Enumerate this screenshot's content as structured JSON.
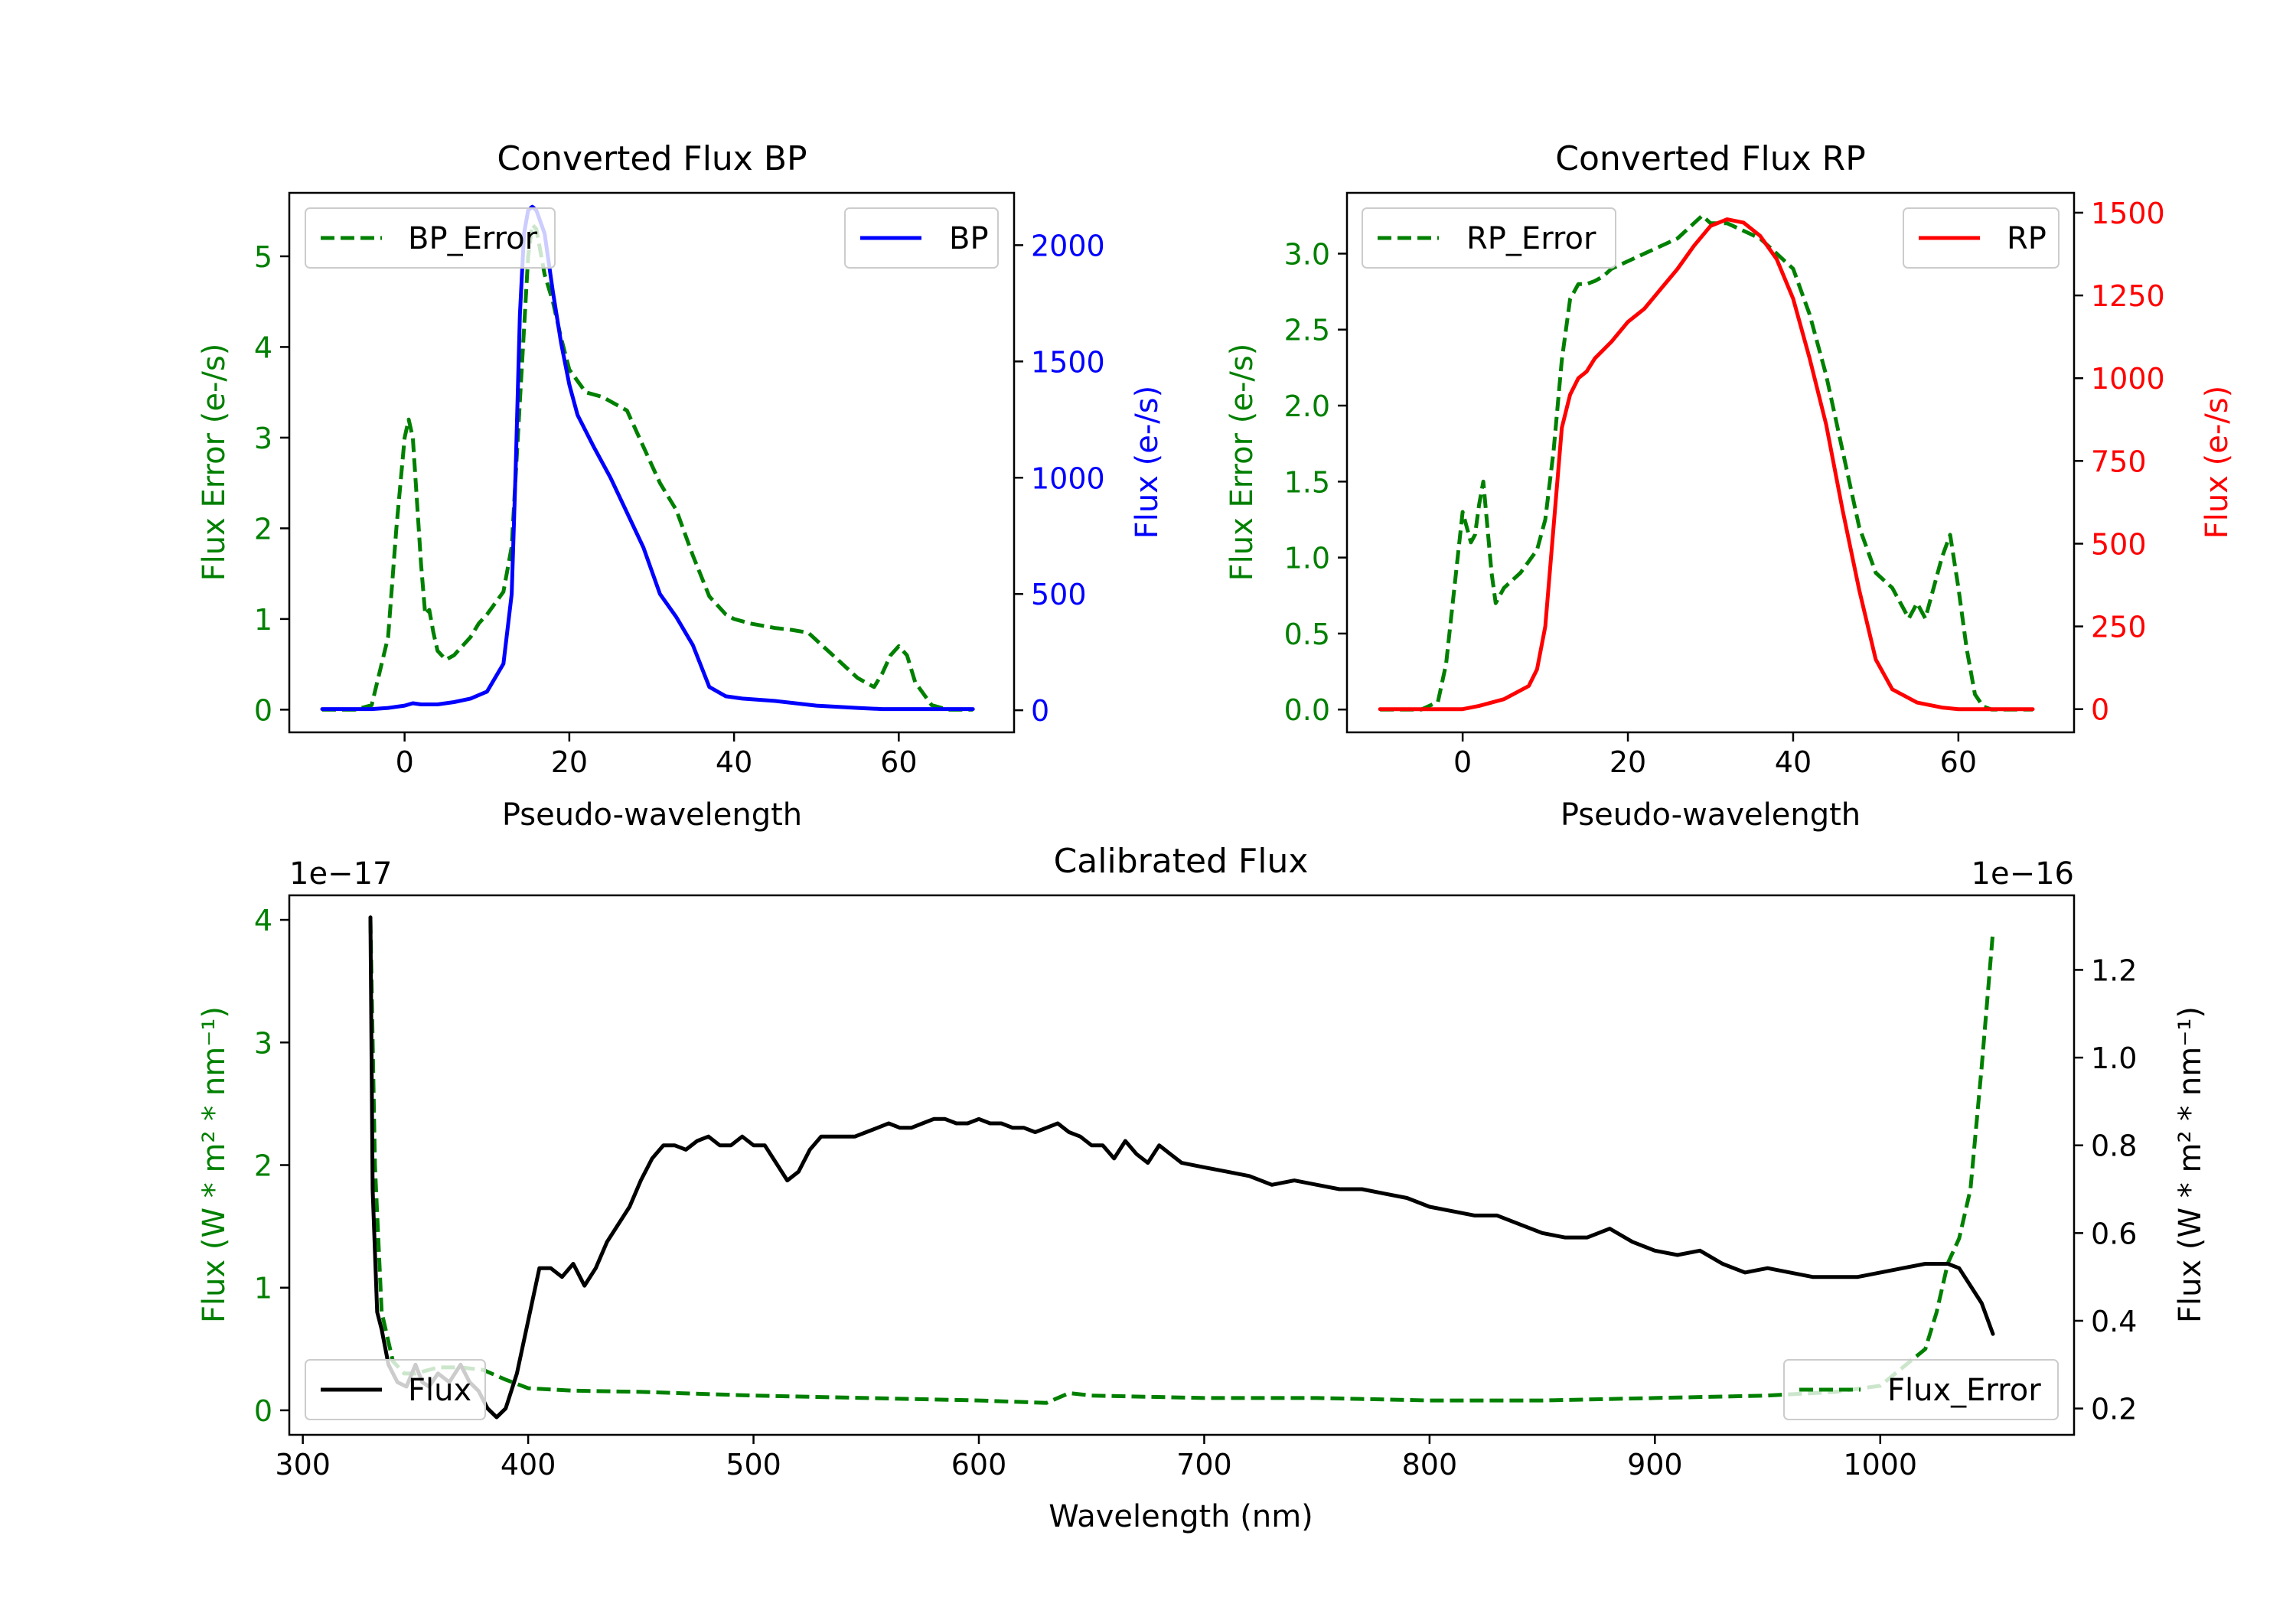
{
  "chart_data": [
    {
      "type": "line",
      "id": "bp",
      "title": "Converted Flux BP",
      "xlabel": "Pseudo-wavelength",
      "xlim": [
        -14,
        74
      ],
      "xticks": [
        0,
        20,
        40,
        60
      ],
      "left_axis": {
        "label": "Flux Error (e-/s)",
        "color": "#008000",
        "ylim": [
          -0.25,
          5.7
        ],
        "ticks": [
          0,
          1,
          2,
          3,
          4,
          5
        ],
        "tick_labels": [
          "0",
          "1",
          "2",
          "3",
          "4",
          "5"
        ]
      },
      "right_axis": {
        "label": "Flux (e-/s)",
        "color": "#0000ff",
        "ylim": [
          -95,
          2225
        ],
        "ticks": [
          0,
          500,
          1000,
          1500,
          2000
        ],
        "tick_labels": [
          "0",
          "500",
          "1000",
          "1500",
          "2000"
        ]
      },
      "series": [
        {
          "name": "BP_Error",
          "axis": "left",
          "color": "#008000",
          "style": "dashed",
          "x": [
            -10,
            -6,
            -4,
            -2,
            -1,
            0,
            0.5,
            1,
            2,
            2.5,
            3,
            3.5,
            4,
            5,
            6,
            8,
            9,
            10,
            12,
            13,
            14,
            15,
            15.5,
            16,
            17,
            18,
            19,
            20,
            22,
            24,
            27,
            29,
            31,
            33,
            35,
            37,
            39,
            40,
            42,
            45,
            47,
            49,
            52,
            55,
            57,
            58,
            59,
            60,
            61,
            62,
            64,
            66,
            69
          ],
          "y": [
            0,
            0,
            0.05,
            0.8,
            2.0,
            3.0,
            3.2,
            3.0,
            1.6,
            1.05,
            1.1,
            0.85,
            0.65,
            0.55,
            0.6,
            0.8,
            0.95,
            1.05,
            1.3,
            1.8,
            3.4,
            5.0,
            5.35,
            5.3,
            4.8,
            4.5,
            4.1,
            3.75,
            3.5,
            3.45,
            3.3,
            2.9,
            2.5,
            2.2,
            1.7,
            1.25,
            1.05,
            1.0,
            0.95,
            0.9,
            0.88,
            0.85,
            0.6,
            0.35,
            0.25,
            0.4,
            0.6,
            0.7,
            0.6,
            0.3,
            0.05,
            0,
            0
          ]
        },
        {
          "name": "BP",
          "axis": "right",
          "color": "#0000ff",
          "style": "solid",
          "x": [
            -10,
            -8,
            -6,
            -4,
            -2,
            0,
            1,
            2,
            4,
            6,
            8,
            10,
            12,
            13,
            13.5,
            14,
            14.5,
            15,
            15.5,
            16,
            17,
            18,
            19,
            20,
            21,
            23,
            25,
            27,
            29,
            31,
            33,
            35,
            37,
            39,
            41,
            45,
            50,
            55,
            58,
            60,
            62,
            65,
            69
          ],
          "y": [
            5,
            5,
            5,
            5,
            10,
            20,
            30,
            25,
            25,
            35,
            50,
            80,
            200,
            500,
            1050,
            1700,
            2050,
            2150,
            2165,
            2150,
            2050,
            1800,
            1580,
            1400,
            1270,
            1130,
            1000,
            850,
            700,
            500,
            400,
            280,
            100,
            60,
            50,
            40,
            20,
            10,
            5,
            5,
            5,
            5,
            5
          ]
        }
      ],
      "legend": [
        {
          "label": "BP_Error",
          "position": "upper-left"
        },
        {
          "label": "BP",
          "position": "upper-right"
        }
      ]
    },
    {
      "type": "line",
      "id": "rp",
      "title": "Converted Flux RP",
      "xlabel": "Pseudo-wavelength",
      "xlim": [
        -14,
        74
      ],
      "xticks": [
        0,
        20,
        40,
        60
      ],
      "left_axis": {
        "label": "Flux Error (e-/s)",
        "color": "#008000",
        "ylim": [
          -0.15,
          3.4
        ],
        "ticks": [
          0,
          0.5,
          1.0,
          1.5,
          2.0,
          2.5,
          3.0
        ],
        "tick_labels": [
          "0.0",
          "0.5",
          "1.0",
          "1.5",
          "2.0",
          "2.5",
          "3.0"
        ]
      },
      "right_axis": {
        "label": "Flux (e-/s)",
        "color": "#ff0000",
        "ylim": [
          -70,
          1560
        ],
        "ticks": [
          0,
          250,
          500,
          750,
          1000,
          1250,
          1500
        ],
        "tick_labels": [
          "0",
          "250",
          "500",
          "750",
          "1000",
          "1250",
          "1500"
        ]
      },
      "series": [
        {
          "name": "RP_Error",
          "axis": "left",
          "color": "#008000",
          "style": "dashed",
          "x": [
            -10,
            -5,
            -3,
            -2,
            -1,
            0,
            0.5,
            1,
            1.5,
            2,
            2.5,
            3,
            3.5,
            4,
            5,
            7,
            9,
            10,
            11,
            12,
            13,
            14,
            15,
            16,
            17,
            18,
            20,
            22,
            24,
            26,
            28,
            29,
            30,
            32,
            34,
            36,
            38,
            40,
            42,
            44,
            46,
            48,
            50,
            52,
            54,
            55,
            56,
            57,
            58,
            59,
            60,
            61,
            62,
            63,
            64,
            66,
            69
          ],
          "y": [
            0,
            0,
            0.05,
            0.3,
            0.8,
            1.3,
            1.2,
            1.1,
            1.15,
            1.35,
            1.5,
            1.2,
            0.9,
            0.7,
            0.8,
            0.9,
            1.05,
            1.25,
            1.7,
            2.3,
            2.7,
            2.8,
            2.8,
            2.82,
            2.85,
            2.9,
            2.95,
            3.0,
            3.05,
            3.1,
            3.2,
            3.25,
            3.2,
            3.2,
            3.15,
            3.1,
            3.0,
            2.9,
            2.6,
            2.2,
            1.7,
            1.2,
            0.9,
            0.8,
            0.6,
            0.7,
            0.6,
            0.8,
            1.0,
            1.15,
            0.8,
            0.4,
            0.1,
            0.02,
            0,
            0,
            0
          ]
        },
        {
          "name": "RP",
          "axis": "right",
          "color": "#ff0000",
          "style": "solid",
          "x": [
            -10,
            -5,
            0,
            2,
            5,
            8,
            9,
            10,
            11,
            12,
            13,
            14,
            15,
            16,
            18,
            20,
            22,
            24,
            26,
            28,
            30,
            32,
            34,
            36,
            38,
            40,
            42,
            44,
            46,
            48,
            50,
            52,
            55,
            58,
            60,
            62,
            65,
            69
          ],
          "y": [
            0,
            0,
            0,
            10,
            30,
            70,
            120,
            250,
            550,
            850,
            950,
            1000,
            1020,
            1060,
            1110,
            1170,
            1210,
            1270,
            1330,
            1400,
            1460,
            1480,
            1470,
            1430,
            1360,
            1240,
            1060,
            860,
            600,
            360,
            150,
            60,
            20,
            5,
            0,
            0,
            0,
            0
          ]
        }
      ],
      "legend": [
        {
          "label": "RP_Error",
          "position": "upper-left"
        },
        {
          "label": "RP",
          "position": "upper-right"
        }
      ]
    },
    {
      "type": "line",
      "id": "calibrated",
      "title": "Calibrated Flux",
      "xlabel": "Wavelength (nm)",
      "xlim": [
        294,
        1086
      ],
      "xticks": [
        300,
        400,
        500,
        600,
        700,
        800,
        900,
        1000
      ],
      "left_axis": {
        "label": "Flux (W * m² * nm⁻¹)",
        "color": "#008000",
        "offset_text": "1e−17",
        "ylim": [
          -0.2,
          4.2
        ],
        "ticks": [
          0,
          1,
          2,
          3,
          4
        ],
        "tick_labels": [
          "0",
          "1",
          "2",
          "3",
          "4"
        ]
      },
      "right_axis": {
        "label": "Flux (W * m² * nm⁻¹)",
        "color": "#000000",
        "offset_text": "1e−16",
        "ylim": [
          0.14,
          1.37
        ],
        "ticks": [
          0.2,
          0.4,
          0.6,
          0.8,
          1.0,
          1.2
        ],
        "tick_labels": [
          "0.2",
          "0.4",
          "0.6",
          "0.8",
          "1.0",
          "1.2"
        ]
      },
      "series": [
        {
          "name": "Flux_Error",
          "axis": "left",
          "color": "#008000",
          "style": "dashed",
          "x": [
            330,
            332,
            335,
            340,
            345,
            350,
            360,
            370,
            380,
            390,
            400,
            420,
            450,
            500,
            550,
            600,
            630,
            640,
            650,
            700,
            750,
            800,
            850,
            900,
            950,
            980,
            1000,
            1010,
            1020,
            1025,
            1030,
            1035,
            1040,
            1045,
            1050
          ],
          "y": [
            4.0,
            2.0,
            0.8,
            0.4,
            0.3,
            0.3,
            0.35,
            0.35,
            0.33,
            0.25,
            0.18,
            0.16,
            0.15,
            0.12,
            0.1,
            0.08,
            0.06,
            0.14,
            0.12,
            0.1,
            0.1,
            0.08,
            0.08,
            0.1,
            0.12,
            0.15,
            0.2,
            0.35,
            0.5,
            0.8,
            1.2,
            1.4,
            1.8,
            2.8,
            3.9
          ]
        },
        {
          "name": "Flux",
          "axis": "right",
          "color": "#000000",
          "style": "solid",
          "x": [
            330,
            331,
            333,
            335,
            338,
            342,
            346,
            350,
            353,
            356,
            360,
            365,
            370,
            374,
            378,
            382,
            386,
            390,
            395,
            400,
            405,
            410,
            415,
            420,
            425,
            430,
            435,
            440,
            445,
            450,
            455,
            460,
            465,
            470,
            475,
            480,
            485,
            490,
            495,
            500,
            505,
            510,
            515,
            520,
            525,
            530,
            535,
            540,
            545,
            550,
            555,
            560,
            565,
            570,
            575,
            580,
            585,
            590,
            595,
            600,
            605,
            610,
            615,
            620,
            625,
            630,
            635,
            640,
            645,
            650,
            655,
            660,
            665,
            670,
            675,
            680,
            685,
            690,
            700,
            710,
            720,
            730,
            740,
            750,
            760,
            770,
            780,
            790,
            800,
            810,
            820,
            830,
            840,
            850,
            860,
            870,
            880,
            890,
            900,
            910,
            920,
            930,
            940,
            950,
            960,
            970,
            980,
            990,
            1000,
            1010,
            1020,
            1030,
            1035,
            1040,
            1045,
            1050
          ],
          "y": [
            1.32,
            0.7,
            0.42,
            0.38,
            0.3,
            0.26,
            0.25,
            0.3,
            0.26,
            0.25,
            0.28,
            0.26,
            0.3,
            0.26,
            0.24,
            0.2,
            0.18,
            0.2,
            0.28,
            0.4,
            0.52,
            0.52,
            0.5,
            0.53,
            0.48,
            0.52,
            0.58,
            0.62,
            0.66,
            0.72,
            0.77,
            0.8,
            0.8,
            0.79,
            0.81,
            0.82,
            0.8,
            0.8,
            0.82,
            0.8,
            0.8,
            0.76,
            0.72,
            0.74,
            0.79,
            0.82,
            0.82,
            0.82,
            0.82,
            0.83,
            0.84,
            0.85,
            0.84,
            0.84,
            0.85,
            0.86,
            0.86,
            0.85,
            0.85,
            0.86,
            0.85,
            0.85,
            0.84,
            0.84,
            0.83,
            0.84,
            0.85,
            0.83,
            0.82,
            0.8,
            0.8,
            0.77,
            0.81,
            0.78,
            0.76,
            0.8,
            0.78,
            0.76,
            0.75,
            0.74,
            0.73,
            0.71,
            0.72,
            0.71,
            0.7,
            0.7,
            0.69,
            0.68,
            0.66,
            0.65,
            0.64,
            0.64,
            0.62,
            0.6,
            0.59,
            0.59,
            0.61,
            0.58,
            0.56,
            0.55,
            0.56,
            0.53,
            0.51,
            0.52,
            0.51,
            0.5,
            0.5,
            0.5,
            0.51,
            0.52,
            0.53,
            0.53,
            0.52,
            0.48,
            0.44,
            0.37
          ]
        }
      ],
      "legend": [
        {
          "label": "Flux",
          "position": "lower-left"
        },
        {
          "label": "Flux_Error",
          "position": "lower-right"
        }
      ]
    }
  ]
}
